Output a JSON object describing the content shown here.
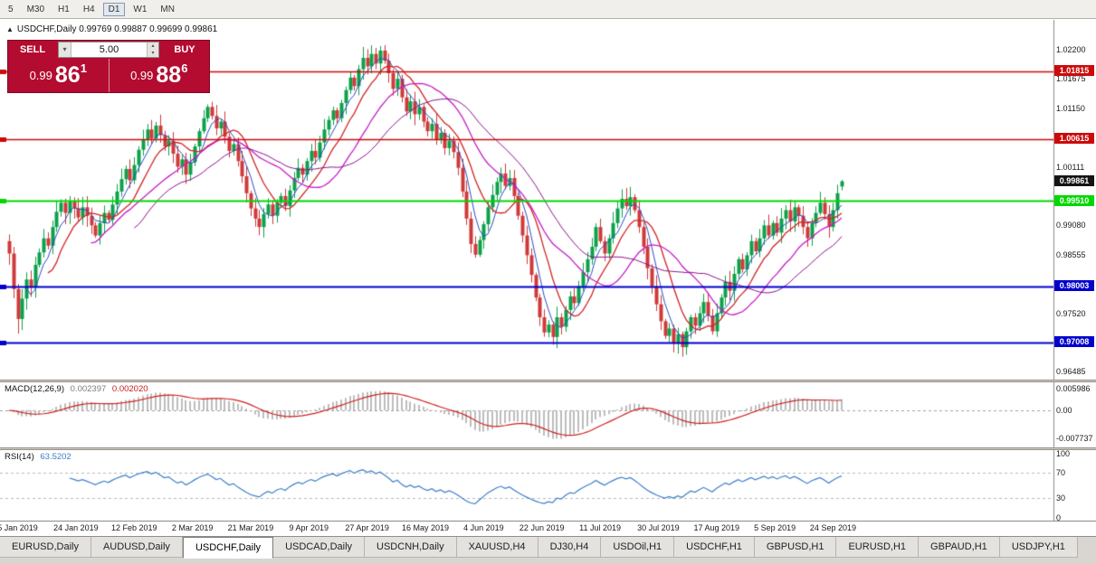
{
  "toolbar": {
    "timeframes": [
      "5",
      "M30",
      "H1",
      "H4",
      "D1",
      "W1",
      "MN"
    ],
    "active": "D1"
  },
  "chart": {
    "collapse_icon": "▲",
    "title": "USDCHF,Daily 0.99769 0.99887 0.99699 0.99861",
    "current_price_badge": "0.99861",
    "trade_panel": {
      "sell_label": "SELL",
      "buy_label": "BUY",
      "volume": "5.00",
      "volume_dropdown_icon": "▾",
      "spin_up_icon": "▴",
      "spin_down_icon": "▾",
      "sell_price_main": "0.99",
      "sell_price_big": "86",
      "sell_price_sup": "1",
      "buy_price_main": "0.99",
      "buy_price_big": "88",
      "buy_price_sup": "6",
      "panel_color": "#b30c30"
    }
  },
  "chart_data": {
    "type": "candlestick",
    "symbol": "USDCHF",
    "timeframe": "Daily",
    "last_candle": {
      "open": 0.99769,
      "high": 0.99887,
      "low": 0.99699,
      "close": 0.99861
    },
    "first_open": 0.988,
    "closes": [
      0.9858,
      0.9795,
      0.9742,
      0.9778,
      0.9812,
      0.9798,
      0.9838,
      0.986,
      0.9885,
      0.9872,
      0.9905,
      0.9932,
      0.9948,
      0.993,
      0.995,
      0.9938,
      0.9922,
      0.994,
      0.9925,
      0.9908,
      0.989,
      0.9912,
      0.993,
      0.9918,
      0.9945,
      0.9968,
      0.999,
      1.0008,
      0.9988,
      1.0015,
      1.0042,
      1.006,
      1.0078,
      1.0062,
      1.0085,
      1.0068,
      1.0048,
      1.0058,
      1.0035,
      1.0012,
      1.0025,
      0.9998,
      1.002,
      1.0048,
      1.0075,
      1.0098,
      1.0118,
      1.0102,
      1.008,
      1.0092,
      1.0065,
      1.004,
      1.0052,
      1.0022,
      0.9995,
      0.9965,
      0.9938,
      0.992,
      0.9905,
      0.9928,
      0.9945,
      0.9925,
      0.9948,
      0.996,
      0.9942,
      0.997,
      0.9992,
      1.001,
      0.9998,
      1.0022,
      1.004,
      1.0028,
      1.0055,
      1.0078,
      1.0095,
      1.0112,
      1.0098,
      1.0125,
      1.0148,
      1.017,
      1.0155,
      1.0185,
      1.0205,
      1.019,
      1.0212,
      1.0195,
      1.0218,
      1.02,
      1.0178,
      1.015,
      1.0168,
      1.0135,
      1.011,
      1.0128,
      1.0105,
      1.0118,
      1.0092,
      1.0075,
      1.0088,
      1.006,
      1.0072,
      1.0045,
      1.0058,
      1.0038,
      1.001,
      0.9968,
      0.992,
      0.9875,
      0.9856,
      0.9882,
      0.991,
      0.994,
      0.9962,
      0.9985,
      1.0,
      0.9978,
      0.9992,
      0.996,
      0.9925,
      0.989,
      0.9855,
      0.982,
      0.978,
      0.9745,
      0.9718,
      0.9732,
      0.971,
      0.9745,
      0.9728,
      0.9758,
      0.9782,
      0.977,
      0.98,
      0.9825,
      0.9848,
      0.987,
      0.9905,
      0.988,
      0.9858,
      0.9885,
      0.9912,
      0.9938,
      0.9955,
      0.9942,
      0.9958,
      0.9935,
      0.9905,
      0.987,
      0.9832,
      0.98,
      0.9768,
      0.9738,
      0.9712,
      0.9725,
      0.9698,
      0.9715,
      0.9692,
      0.972,
      0.9745,
      0.973,
      0.9752,
      0.9772,
      0.9748,
      0.972,
      0.9752,
      0.978,
      0.9808,
      0.9792,
      0.9822,
      0.9848,
      0.983,
      0.9855,
      0.988,
      0.9862,
      0.9885,
      0.9908,
      0.989,
      0.9912,
      0.9895,
      0.992,
      0.9935,
      0.9915,
      0.994,
      0.9925,
      0.9905,
      0.9885,
      0.9912,
      0.993,
      0.9948,
      0.9928,
      0.9905,
      0.9935,
      0.9965,
      0.99861
    ],
    "wick_overrides": [
      {
        "i": 2,
        "low": 0.9716
      },
      {
        "i": 86,
        "high": 1.0226
      },
      {
        "i": 126,
        "low": 0.9696
      },
      {
        "i": 156,
        "low": 0.9675
      }
    ],
    "ylim": [
      0.9644,
      1.0266
    ],
    "y_axis_ticks": [
      "1.02200",
      "1.01675",
      "1.01150",
      "1.00635",
      "1.00111",
      "0.99080",
      "0.98555",
      "0.97520",
      "0.96485"
    ],
    "x_axis_ticks": [
      "5 Jan 2019",
      "24 Jan 2019",
      "12 Feb 2019",
      "2 Mar 2019",
      "21 Mar 2019",
      "9 Apr 2019",
      "27 Apr 2019",
      "16 May 2019",
      "4 Jun 2019",
      "22 Jun 2019",
      "11 Jul 2019",
      "30 Jul 2019",
      "17 Aug 2019",
      "5 Sep 2019",
      "24 Sep 2019"
    ],
    "hlines": [
      {
        "price": 1.01815,
        "label": "1.01815",
        "color": "#cc0a0a",
        "width": 1.5
      },
      {
        "price": 1.00615,
        "label": "1.00615",
        "color": "#cc0a0a",
        "width": 1.5
      },
      {
        "price": 0.9951,
        "label": "0.99510",
        "color": "#00d800",
        "width": 2
      },
      {
        "price": 0.98003,
        "label": "0.98003",
        "color": "#0000cc",
        "width": 2
      },
      {
        "price": 0.97008,
        "label": "0.97008",
        "color": "#0000cc",
        "width": 2
      }
    ],
    "moving_averages": [
      {
        "period": 5,
        "color": "#2b4bc4",
        "w": 1
      },
      {
        "period": 10,
        "color": "#d02424",
        "w": 1.3
      },
      {
        "period": 20,
        "color": "#c61cc6",
        "w": 1.3
      },
      {
        "period": 30,
        "color": "#8c108c",
        "w": 1
      }
    ],
    "candle_colors": {
      "bull": "#0ca14a",
      "bear": "#cf3a3a"
    },
    "macd": {
      "label": "MACD(12,26,9)",
      "value1": "0.002397",
      "value2": "0.002020",
      "fast": 12,
      "slow": 26,
      "signal": 9,
      "ylim": [
        -0.0095,
        0.007
      ],
      "y_ticks": [
        {
          "text": "0.005986",
          "value": 0.005986
        },
        {
          "text": "0.00",
          "value": 0
        },
        {
          "text": "-0.007737",
          "value": -0.007737
        }
      ],
      "hist_color": "#bdbdbd",
      "signal_color": "#d02020"
    },
    "rsi": {
      "label": "RSI(14)",
      "value": "63.5202",
      "period": 14,
      "levels": [
        70,
        30
      ],
      "y_ticks": [
        {
          "text": "100",
          "value": 100
        },
        {
          "text": "70",
          "value": 70
        },
        {
          "text": "30",
          "value": 30
        },
        {
          "text": "0",
          "value": 0
        }
      ],
      "color": "#3c7ec8"
    }
  },
  "tabbar": {
    "tabs": [
      "EURUSD,Daily",
      "AUDUSD,Daily",
      "USDCHF,Daily",
      "USDCAD,Daily",
      "USDCNH,Daily",
      "XAUUSD,H4",
      "DJ30,H4",
      "USDOil,H1",
      "USDCHF,H1",
      "GBPUSD,H1",
      "EURUSD,H1",
      "GBPAUD,H1",
      "USDJPY,H1"
    ],
    "active_index": 2
  }
}
